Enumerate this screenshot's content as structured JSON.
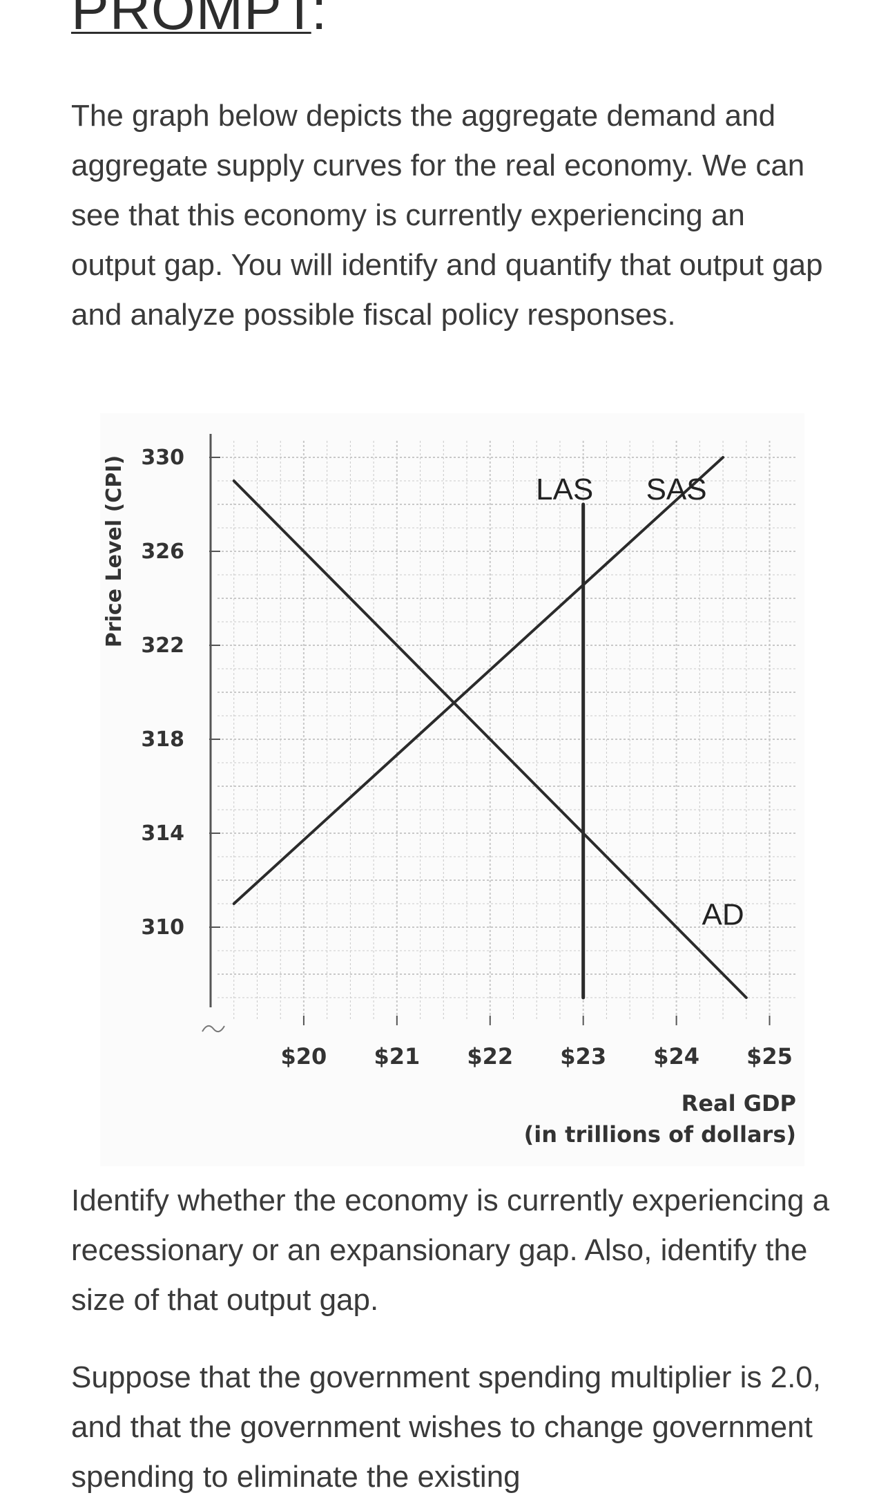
{
  "prompt_heading": {
    "main": "PROMPT",
    "colon": ":"
  },
  "paragraphs": {
    "intro": "The graph below depicts the aggregate demand and aggregate supply curves for the real economy. We can see that this economy is currently experiencing an output gap. You will identify and quantify that output gap and analyze possible fiscal policy responses.",
    "question1": "Identify whether the economy is currently experiencing a recessionary or an expansionary gap. Also, identify the size of that output gap.",
    "question2": "Suppose that the government spending multiplier is 2.0, and that the government wishes to change government spending to eliminate the existing"
  },
  "chart_data": {
    "type": "line",
    "ylabel": "Price Level (CPI)",
    "xlabel": "Real GDP",
    "xlabel_sub": "(in trillions of dollars)",
    "x_ticks": [
      "$20",
      "$21",
      "$22",
      "$23",
      "$24",
      "$25"
    ],
    "x_tick_values": [
      20,
      21,
      22,
      23,
      24,
      25
    ],
    "y_ticks": [
      "330",
      "326",
      "322",
      "318",
      "314",
      "310"
    ],
    "y_tick_values": [
      330,
      326,
      322,
      318,
      314,
      310
    ],
    "xlim": [
      19,
      25.3
    ],
    "ylim": [
      306,
      331
    ],
    "grid": true,
    "series": [
      {
        "name": "AD",
        "x": [
          19.25,
          24.75
        ],
        "y": [
          329,
          307
        ]
      },
      {
        "name": "SAS",
        "x": [
          19.25,
          24.5
        ],
        "y": [
          311,
          330
        ]
      },
      {
        "name": "LAS",
        "x": [
          23,
          23
        ],
        "y": [
          307,
          328
        ]
      }
    ],
    "curve_labels": [
      {
        "text": "LAS",
        "x": 22.8,
        "y": 328.2
      },
      {
        "text": "SAS",
        "x": 24.0,
        "y": 328.2
      },
      {
        "text": "AD",
        "x": 24.5,
        "y": 310.1
      }
    ],
    "colors": {
      "curve": "#2b2b2b",
      "grid": "#c8c8c8",
      "text": "#333333"
    }
  }
}
